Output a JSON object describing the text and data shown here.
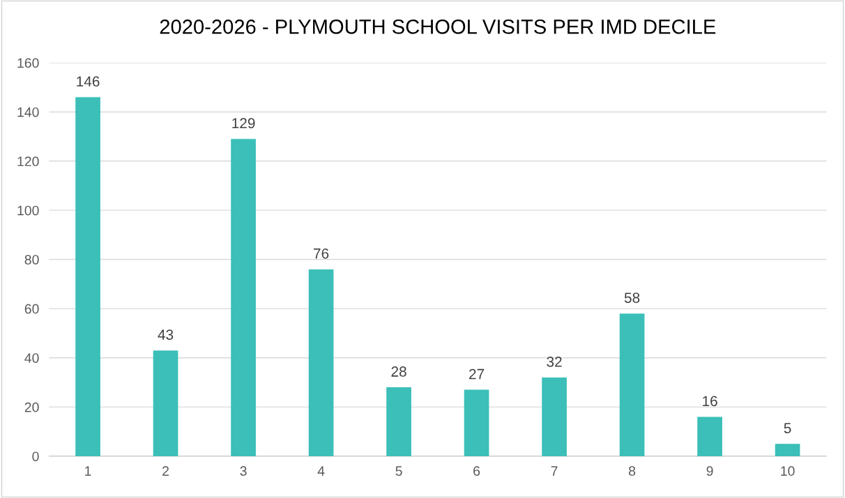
{
  "chart_data": {
    "type": "bar",
    "title": "2020-2026 - PLYMOUTH SCHOOL VISITS PER IMD DECILE",
    "categories": [
      "1",
      "2",
      "3",
      "4",
      "5",
      "6",
      "7",
      "8",
      "9",
      "10"
    ],
    "values": [
      146,
      43,
      129,
      76,
      28,
      27,
      32,
      58,
      16,
      5
    ],
    "color": "#3bbfb8",
    "ylim": [
      0,
      160
    ],
    "yticks": [
      0,
      20,
      40,
      60,
      80,
      100,
      120,
      140,
      160
    ],
    "grid": "y",
    "data_labels": true,
    "legend": false
  }
}
